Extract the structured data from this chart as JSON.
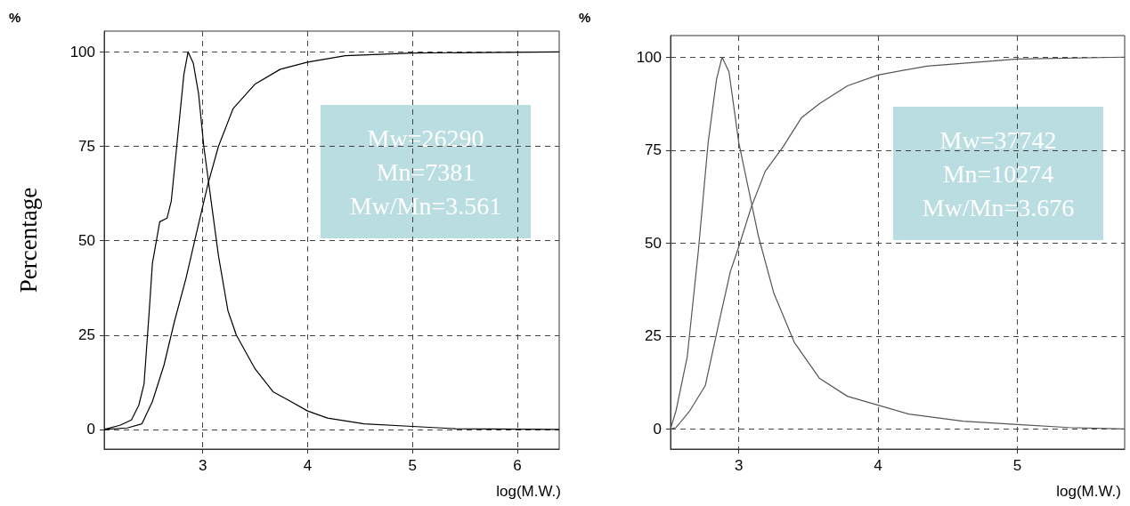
{
  "chart_data": [
    {
      "type": "line",
      "xlabel": "log(M.W.)",
      "ylabel": "Percentage",
      "annotations": [
        "%",
        "Mw=26290",
        "Mn=7381",
        "Mw/Mn=3.561"
      ],
      "xlim": [
        2.06,
        6.4
      ],
      "xticks": [
        3,
        4,
        5,
        6
      ],
      "ylim": [
        -5.2,
        105.5
      ],
      "yticks": [
        0,
        25,
        50,
        75,
        100
      ],
      "grid": true,
      "marker": "none",
      "line_style": "solid",
      "series": [
        {
          "color": "#000000",
          "x": [
            2.06,
            2.21,
            2.32,
            2.39,
            2.44,
            2.49,
            2.52,
            2.59,
            2.66,
            2.7,
            2.77,
            2.82,
            2.86,
            2.91,
            2.96,
            3.01,
            3.08,
            3.15,
            3.24,
            3.32,
            3.5,
            3.67,
            3.84,
            4.0,
            4.19,
            4.54,
            5.0,
            5.41,
            6.4
          ],
          "values": [
            0,
            1.1,
            2.5,
            6.4,
            12,
            31.5,
            44,
            55,
            56,
            60.5,
            80,
            94,
            100,
            97,
            89,
            75,
            60.5,
            46,
            31.5,
            25,
            16,
            10,
            7.4,
            4.9,
            3,
            1.5,
            0.8,
            0.2,
            0
          ]
        },
        {
          "color": "#000000",
          "x": [
            2.06,
            2.28,
            2.42,
            2.52,
            2.63,
            2.73,
            2.84,
            2.94,
            3.05,
            3.15,
            3.29,
            3.5,
            3.74,
            4.0,
            4.36,
            5.0,
            6.4
          ],
          "values": [
            0,
            0.4,
            1.5,
            7.4,
            17,
            28.6,
            40,
            52,
            65,
            75,
            85,
            91.5,
            95.4,
            97.3,
            99,
            99.7,
            100
          ]
        }
      ]
    },
    {
      "type": "line",
      "xlabel": "log(M.W.)",
      "annotations": [
        "%",
        "Mw=37742",
        "Mn=10274",
        "Mw/Mn=3.676"
      ],
      "xlim": [
        2.51,
        5.77
      ],
      "xticks": [
        3,
        4,
        5
      ],
      "ylim": [
        -5.4,
        105.8
      ],
      "yticks": [
        0,
        25,
        50,
        75,
        100
      ],
      "grid": true,
      "marker": "none",
      "line_style": "solid",
      "series": [
        {
          "color": "#555555",
          "x": [
            2.51,
            2.55,
            2.63,
            2.71,
            2.78,
            2.84,
            2.88,
            2.93,
            3.0,
            3.07,
            3.14,
            3.25,
            3.4,
            3.58,
            3.78,
            4.0,
            4.22,
            4.61,
            5.0,
            5.37,
            5.77
          ],
          "values": [
            0,
            5,
            19.4,
            48,
            77,
            94,
            100,
            96,
            77,
            64.5,
            52,
            36.7,
            23.2,
            13.6,
            8.8,
            6.4,
            4,
            2.1,
            1.2,
            0.4,
            0
          ]
        },
        {
          "color": "#555555",
          "x": [
            2.51,
            2.55,
            2.65,
            2.76,
            2.86,
            2.94,
            3.0,
            3.09,
            3.19,
            3.32,
            3.45,
            3.58,
            3.78,
            4.0,
            4.35,
            5.0,
            5.77
          ],
          "values": [
            0,
            0.4,
            5,
            11.7,
            29,
            42.4,
            49,
            59.7,
            69.3,
            76,
            83.7,
            87.5,
            92.3,
            95.2,
            97.6,
            99.5,
            100
          ]
        }
      ]
    }
  ]
}
